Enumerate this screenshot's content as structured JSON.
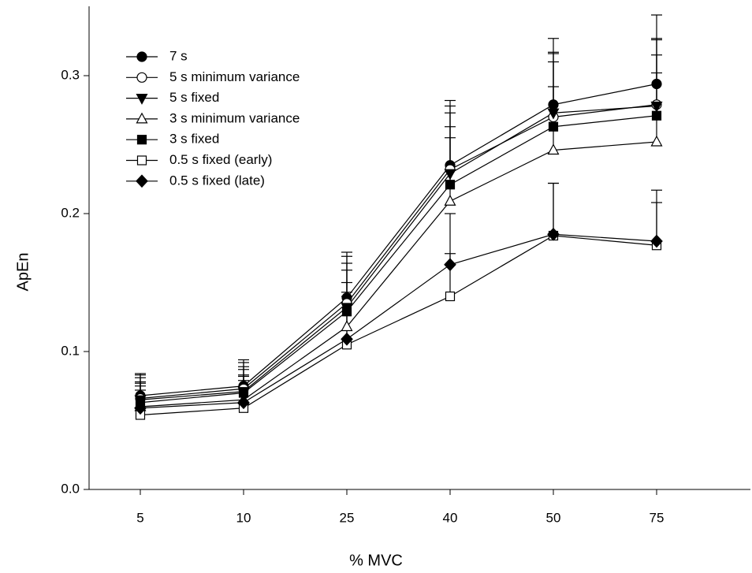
{
  "chart_data": {
    "type": "line",
    "x_label": "% MVC",
    "y_label": "ApEn",
    "categories": [
      "5",
      "10",
      "25",
      "40",
      "50",
      "75"
    ],
    "ylim": [
      0,
      0.35
    ],
    "yticks": [
      {
        "value": 0,
        "label": "0.0"
      },
      0.1,
      0.2,
      0.3
    ],
    "legend": "top-left",
    "series": [
      {
        "name": "7 s",
        "color": "#000000",
        "marker": "circle",
        "filled": true,
        "values": [
          0.068,
          0.075,
          0.139,
          0.235,
          0.279,
          0.294
        ],
        "errors": [
          0.016,
          0.019,
          0.033,
          0.047,
          0.048,
          0.05
        ]
      },
      {
        "name": "5 s minimum variance",
        "color": "#000000",
        "marker": "circle",
        "filled": false,
        "values": [
          0.066,
          0.073,
          0.135,
          0.232,
          0.27,
          0.279
        ],
        "errors": [
          0.017,
          0.019,
          0.034,
          0.046,
          0.047,
          0.048
        ]
      },
      {
        "name": "5 s fixed",
        "color": "#000000",
        "marker": "triangle-down",
        "filled": true,
        "values": [
          0.065,
          0.071,
          0.132,
          0.229,
          0.273,
          0.278
        ],
        "errors": [
          0.016,
          0.018,
          0.032,
          0.044,
          0.043,
          0.048
        ]
      },
      {
        "name": "3 s minimum variance",
        "color": "#000000",
        "marker": "triangle-up",
        "filled": false,
        "values": [
          0.06,
          0.065,
          0.118,
          0.209,
          0.246,
          0.252
        ],
        "errors": [
          0.017,
          0.018,
          0.032,
          0.046,
          0.046,
          0.05
        ]
      },
      {
        "name": "3 s fixed",
        "color": "#000000",
        "marker": "square",
        "filled": true,
        "values": [
          0.063,
          0.07,
          0.129,
          0.221,
          0.263,
          0.271
        ],
        "errors": [
          0.015,
          0.017,
          0.03,
          0.042,
          0.047,
          0.044
        ]
      },
      {
        "name": "0.5 s fixed (early)",
        "color": "#000000",
        "marker": "square",
        "filled": false,
        "values": [
          0.054,
          0.059,
          0.105,
          0.14,
          0.184,
          0.177
        ],
        "errors": [
          0.018,
          0.02,
          0.035,
          0.031,
          0.038,
          0.031
        ]
      },
      {
        "name": "0.5 s fixed (late)",
        "color": "#000000",
        "marker": "diamond",
        "filled": true,
        "values": [
          0.059,
          0.063,
          0.109,
          0.163,
          0.185,
          0.18
        ],
        "errors": [
          0.016,
          0.019,
          0.034,
          0.037,
          0.037,
          0.037
        ]
      }
    ]
  }
}
